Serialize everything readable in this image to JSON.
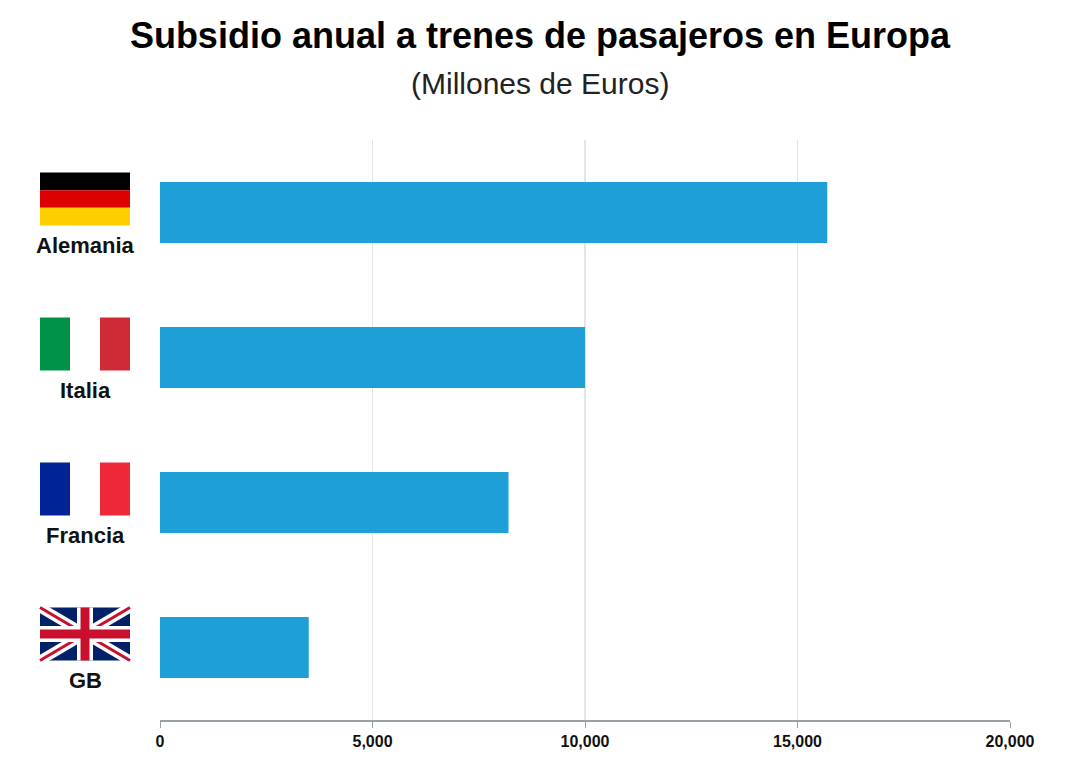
{
  "chart_data": {
    "type": "bar",
    "title": "Subsidio anual a trenes de pasajeros en Europa",
    "subtitle": "(Millones de Euros)",
    "orientation": "horizontal",
    "categories": [
      "Alemania",
      "Italia",
      "Francia",
      "GB"
    ],
    "values": [
      15700,
      10000,
      8200,
      3500
    ],
    "color": "#1e9fd8",
    "xlim": [
      0,
      20000
    ],
    "xticks": [
      0,
      {
        "value": 5000,
        "label": "5,000"
      },
      {
        "value": 10000,
        "label": "10,000"
      },
      {
        "value": 15000,
        "label": "15,000"
      },
      {
        "value": 20000,
        "label": "20,000"
      }
    ],
    "grid": true,
    "tick_labels": "x"
  }
}
